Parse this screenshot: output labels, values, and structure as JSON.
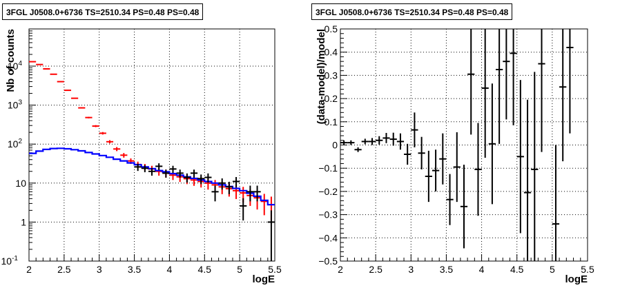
{
  "chart_data": [
    {
      "type": "scatter",
      "title": "3FGL J0508.0+6736 TS=2510.34 PS=0.48 PS=0.48",
      "xlabel": "logE",
      "ylabel": "Nb of counts",
      "xlim": [
        2,
        5.5
      ],
      "ylim": [
        0.1,
        90000
      ],
      "yscale": "log",
      "grid": true,
      "xticks": [
        {
          "v": 2,
          "label": "2"
        },
        {
          "v": 2.5,
          "label": "2.5"
        },
        {
          "v": 3,
          "label": "3"
        },
        {
          "v": 3.5,
          "label": "3.5"
        },
        {
          "v": 4,
          "label": "4"
        },
        {
          "v": 4.5,
          "label": "4.5"
        },
        {
          "v": 5,
          "label": "5"
        },
        {
          "v": 5.5,
          "label": "5.5"
        }
      ],
      "yticks": [
        {
          "v": 0.1,
          "label": "10",
          "sup": "-1"
        },
        {
          "v": 1,
          "label": "1",
          "sup": ""
        },
        {
          "v": 10,
          "label": "10",
          "sup": ""
        },
        {
          "v": 100,
          "label": "10",
          "sup": "2"
        },
        {
          "v": 1000,
          "label": "10",
          "sup": "3"
        },
        {
          "v": 10000,
          "label": "10",
          "sup": "4"
        }
      ],
      "series": [
        {
          "color": "#ff0000",
          "x": [
            2.05,
            2.15,
            2.25,
            2.35,
            2.45,
            2.55,
            2.65,
            2.75,
            2.85,
            2.95,
            3.05,
            3.15,
            3.25,
            3.35,
            3.45,
            3.55,
            3.65,
            3.75,
            3.85,
            3.95,
            4.05,
            4.15,
            4.25,
            4.35,
            4.45,
            4.55,
            4.65,
            4.75,
            4.85,
            4.95,
            5.05,
            5.15,
            5.25,
            5.35,
            5.45
          ],
          "y": [
            13000,
            11000,
            8500,
            6200,
            4000,
            2400,
            1500,
            850,
            480,
            290,
            190,
            115,
            75,
            52,
            37,
            30,
            26,
            23,
            20,
            18,
            16,
            14.5,
            13,
            12,
            11,
            10,
            9,
            8,
            7.2,
            6.4,
            5.6,
            4.8,
            4.2,
            3.4,
            2.8
          ],
          "err": [
            120,
            105,
            95,
            80,
            65,
            50,
            40,
            30,
            22,
            17,
            14,
            11,
            9,
            7,
            6,
            5.5,
            5,
            4.8,
            4.5,
            4.2,
            4,
            3.8,
            3.6,
            3.5,
            3.3,
            3.2,
            3,
            2.8,
            2.7,
            2.5,
            2.4,
            2.2,
            2.1,
            1.9,
            1.7
          ]
        },
        {
          "color": "#0000ff",
          "x": [
            2.0,
            2.05,
            2.15,
            2.25,
            2.35,
            2.45,
            2.55,
            2.65,
            2.75,
            2.85,
            2.95,
            3.05,
            3.15,
            3.25,
            3.35,
            3.45,
            3.55,
            3.65,
            3.75,
            3.85,
            3.95,
            4.05,
            4.15,
            4.25,
            4.35,
            4.45,
            4.55,
            4.65,
            4.75,
            4.85,
            4.95,
            5.05,
            5.15,
            5.25,
            5.35,
            5.45,
            5.5
          ],
          "y": [
            58,
            58,
            66,
            73,
            77,
            78,
            76,
            72,
            67,
            61,
            56,
            51,
            46,
            41,
            37,
            33,
            29.5,
            26,
            23.5,
            21,
            19.5,
            17.5,
            16,
            14.5,
            13.2,
            12,
            11,
            10,
            9,
            8.2,
            7.3,
            6.4,
            5.5,
            4.6,
            3.6,
            2.8,
            2.8
          ]
        },
        {
          "color": "#000000",
          "x": [
            3.55,
            3.65,
            3.75,
            3.85,
            3.95,
            4.05,
            4.15,
            4.25,
            4.35,
            4.45,
            4.55,
            4.65,
            4.75,
            4.85,
            4.95,
            5.05,
            5.15,
            5.25,
            5.45
          ],
          "y": [
            26,
            24,
            20,
            27,
            18,
            23,
            18,
            14,
            18,
            13,
            14,
            6,
            10,
            8,
            11,
            2.6,
            6,
            6,
            1
          ],
          "err": [
            5.5,
            5,
            4.5,
            5.2,
            4.2,
            4.8,
            4.2,
            3.7,
            4.2,
            3.6,
            3.7,
            2.6,
            3.2,
            2.8,
            3.3,
            1.5,
            2.6,
            2.6,
            1
          ]
        }
      ]
    },
    {
      "type": "scatter",
      "title": "3FGL J0508.0+6736 TS=2510.34 PS=0.48 PS=0.48",
      "xlabel": "logE",
      "ylabel": "(data-model)/model",
      "xlim": [
        2,
        5.5
      ],
      "ylim": [
        -0.5,
        0.5
      ],
      "grid": true,
      "xticks": [
        {
          "v": 2,
          "label": "2"
        },
        {
          "v": 2.5,
          "label": "2.5"
        },
        {
          "v": 3,
          "label": "3"
        },
        {
          "v": 3.5,
          "label": "3.5"
        },
        {
          "v": 4,
          "label": "4"
        },
        {
          "v": 4.5,
          "label": "4.5"
        },
        {
          "v": 5,
          "label": "5"
        },
        {
          "v": 5.5,
          "label": "5.5"
        }
      ],
      "yticks": [
        {
          "v": -0.5,
          "label": "−0.5"
        },
        {
          "v": -0.4,
          "label": "−0.4"
        },
        {
          "v": -0.3,
          "label": "−0.3"
        },
        {
          "v": -0.2,
          "label": "−0.2"
        },
        {
          "v": -0.1,
          "label": "−0.1"
        },
        {
          "v": 0,
          "label": "0"
        },
        {
          "v": 0.1,
          "label": "0.1"
        },
        {
          "v": 0.2,
          "label": "0.2"
        },
        {
          "v": 0.3,
          "label": "0.3"
        },
        {
          "v": 0.4,
          "label": "0.4"
        },
        {
          "v": 0.5,
          "label": "0.5"
        }
      ],
      "series": [
        {
          "color": "#000000",
          "x": [
            2.05,
            2.15,
            2.25,
            2.35,
            2.45,
            2.55,
            2.65,
            2.75,
            2.85,
            2.95,
            3.05,
            3.15,
            3.25,
            3.35,
            3.45,
            3.55,
            3.65,
            3.75,
            3.85,
            3.95,
            4.05,
            4.15,
            4.25,
            4.35,
            4.45,
            4.55,
            4.65,
            4.75,
            4.85,
            5.05,
            5.15,
            5.25
          ],
          "y": [
            0.01,
            0.01,
            -0.02,
            0.015,
            0.015,
            0.02,
            0.03,
            0.025,
            0.015,
            -0.04,
            0.065,
            -0.035,
            -0.135,
            -0.11,
            -0.06,
            -0.235,
            -0.095,
            -0.265,
            0.305,
            -0.105,
            0.245,
            0.005,
            0.325,
            0.36,
            0.395,
            -0.05,
            -0.205,
            -0.105,
            0.35,
            -0.34,
            0.25,
            0.42
          ],
          "err": [
            0.01,
            0.01,
            0.01,
            0.012,
            0.015,
            0.018,
            0.022,
            0.028,
            0.035,
            0.045,
            0.075,
            0.07,
            0.11,
            0.09,
            0.11,
            0.11,
            0.15,
            0.18,
            0.26,
            0.2,
            0.3,
            0.26,
            0.32,
            0.25,
            0.31,
            0.33,
            0.4,
            0.42,
            0.38,
            0.34,
            0.32,
            0.37
          ]
        }
      ]
    }
  ]
}
